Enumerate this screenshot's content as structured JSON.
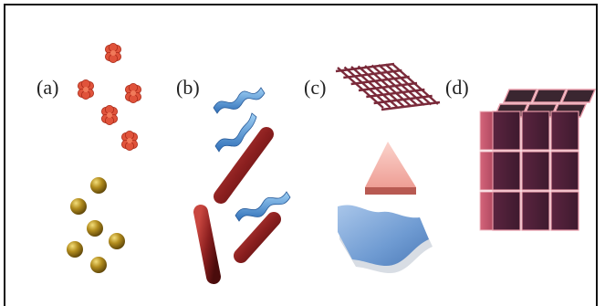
{
  "panels": [
    {
      "label": "(a)"
    },
    {
      "label": "(b)"
    },
    {
      "label": "(c)"
    },
    {
      "label": "(d)"
    }
  ],
  "colors": {
    "flower": "#e0533b",
    "sphere": "#a8851a",
    "ribbon": "#5b9bd8",
    "rod": "#8b1f1f",
    "mesh": "#7a2a3a",
    "triangle": "#f2b7b0",
    "sheet": "#7fa8d8",
    "cube_side": "#6b2e4a",
    "cube_top": "#3a2630",
    "cube_edge": "#e89aa8"
  },
  "icons": [
    "flower-cluster-icon",
    "sphere-icon",
    "ribbon-icon",
    "rod-icon",
    "mesh-icon",
    "triangle-icon",
    "wavy-sheet-icon",
    "cube-stack-icon"
  ]
}
